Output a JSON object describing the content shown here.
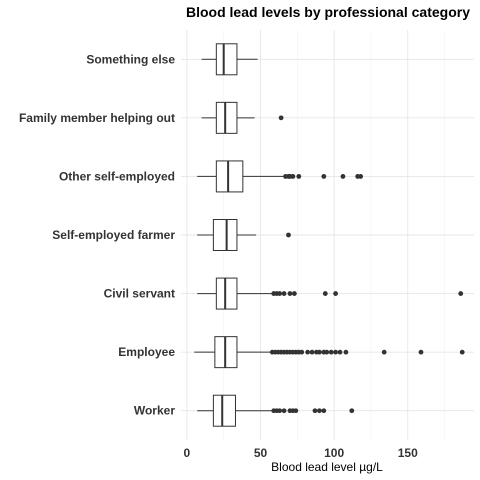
{
  "chart_data": {
    "type": "boxplot",
    "title": "Blood lead levels by professional category",
    "xlabel": "Blood lead level µg/L",
    "ylabel": "",
    "xlim": [
      -4,
      195
    ],
    "x_ticks": [
      0,
      50,
      100,
      150
    ],
    "x_tick_labels": [
      "0",
      "50",
      "100",
      "150"
    ],
    "orientation": "horizontal",
    "grid": true,
    "colors": {
      "box_fill": "#ffffff",
      "stroke": "#333333",
      "grid": "#e6e6e6"
    },
    "categories": [
      "Something else",
      "Family member helping out",
      "Other self-employed",
      "Self-employed farmer",
      "Civil servant",
      "Employee",
      "Worker"
    ],
    "boxes": [
      {
        "category": "Something else",
        "whisker_low": 10,
        "q1": 20,
        "median": 25,
        "q3": 34,
        "whisker_high": 48,
        "outliers": []
      },
      {
        "category": "Family member helping out",
        "whisker_low": 10,
        "q1": 20,
        "median": 26,
        "q3": 34,
        "whisker_high": 46,
        "outliers": [
          64
        ]
      },
      {
        "category": "Other self-employed",
        "whisker_low": 7,
        "q1": 20,
        "median": 28,
        "q3": 38,
        "whisker_high": 66,
        "outliers": [
          67,
          69,
          70,
          72,
          76,
          93,
          106,
          116,
          118
        ]
      },
      {
        "category": "Self-employed farmer",
        "whisker_low": 7,
        "q1": 18,
        "median": 27,
        "q3": 34,
        "whisker_high": 47,
        "outliers": [
          69
        ]
      },
      {
        "category": "Civil servant",
        "whisker_low": 7,
        "q1": 20,
        "median": 26,
        "q3": 34,
        "whisker_high": 58,
        "outliers": [
          59,
          61,
          63,
          66,
          70,
          73,
          94,
          101,
          186
        ]
      },
      {
        "category": "Employee",
        "whisker_low": 5,
        "q1": 19,
        "median": 26,
        "q3": 34,
        "whisker_high": 57,
        "outliers": [
          58,
          60,
          62,
          64,
          66,
          68,
          70,
          72,
          74,
          76,
          78,
          82,
          85,
          88,
          90,
          93,
          95,
          98,
          101,
          104,
          108,
          134,
          159,
          187
        ]
      },
      {
        "category": "Worker",
        "whisker_low": 7,
        "q1": 18,
        "median": 24,
        "q3": 33,
        "whisker_high": 58,
        "outliers": [
          59,
          61,
          63,
          66,
          70,
          72,
          74,
          87,
          90,
          93,
          112
        ]
      }
    ]
  }
}
